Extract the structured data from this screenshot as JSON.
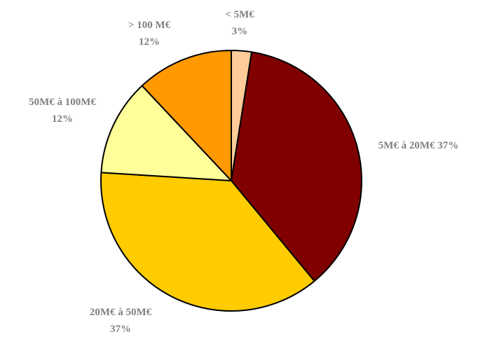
{
  "chart_data": {
    "type": "pie",
    "start_angle_deg": 0,
    "direction": "clockwise",
    "label_color": "#7f7f7f",
    "outline_color": "#000000",
    "slices": [
      {
        "category": "< 5M€",
        "percent_label": "3%",
        "value": 2.5,
        "color": "#ffcc99",
        "label_lines": [
          "< 5M€",
          "3%"
        ]
      },
      {
        "category": "5M€ à 20M€",
        "percent_label": "37%",
        "value": 36.5,
        "color": "#800000",
        "label_lines": [
          "5M€ à 20M€ 37%"
        ]
      },
      {
        "category": "20M€ à 50M€",
        "percent_label": "37%",
        "value": 37,
        "color": "#ffcc00",
        "label_lines": [
          "20M€ à 50M€",
          "37%"
        ]
      },
      {
        "category": "50M€ à 100M€",
        "percent_label": "12%",
        "value": 12,
        "color": "#ffff99",
        "label_lines": [
          "50M€ à 100M€",
          "12%"
        ]
      },
      {
        "category": "> 100 M€",
        "percent_label": "12%",
        "value": 12,
        "color": "#ff9900",
        "label_lines": [
          "> 100 M€",
          "12%"
        ]
      }
    ]
  }
}
